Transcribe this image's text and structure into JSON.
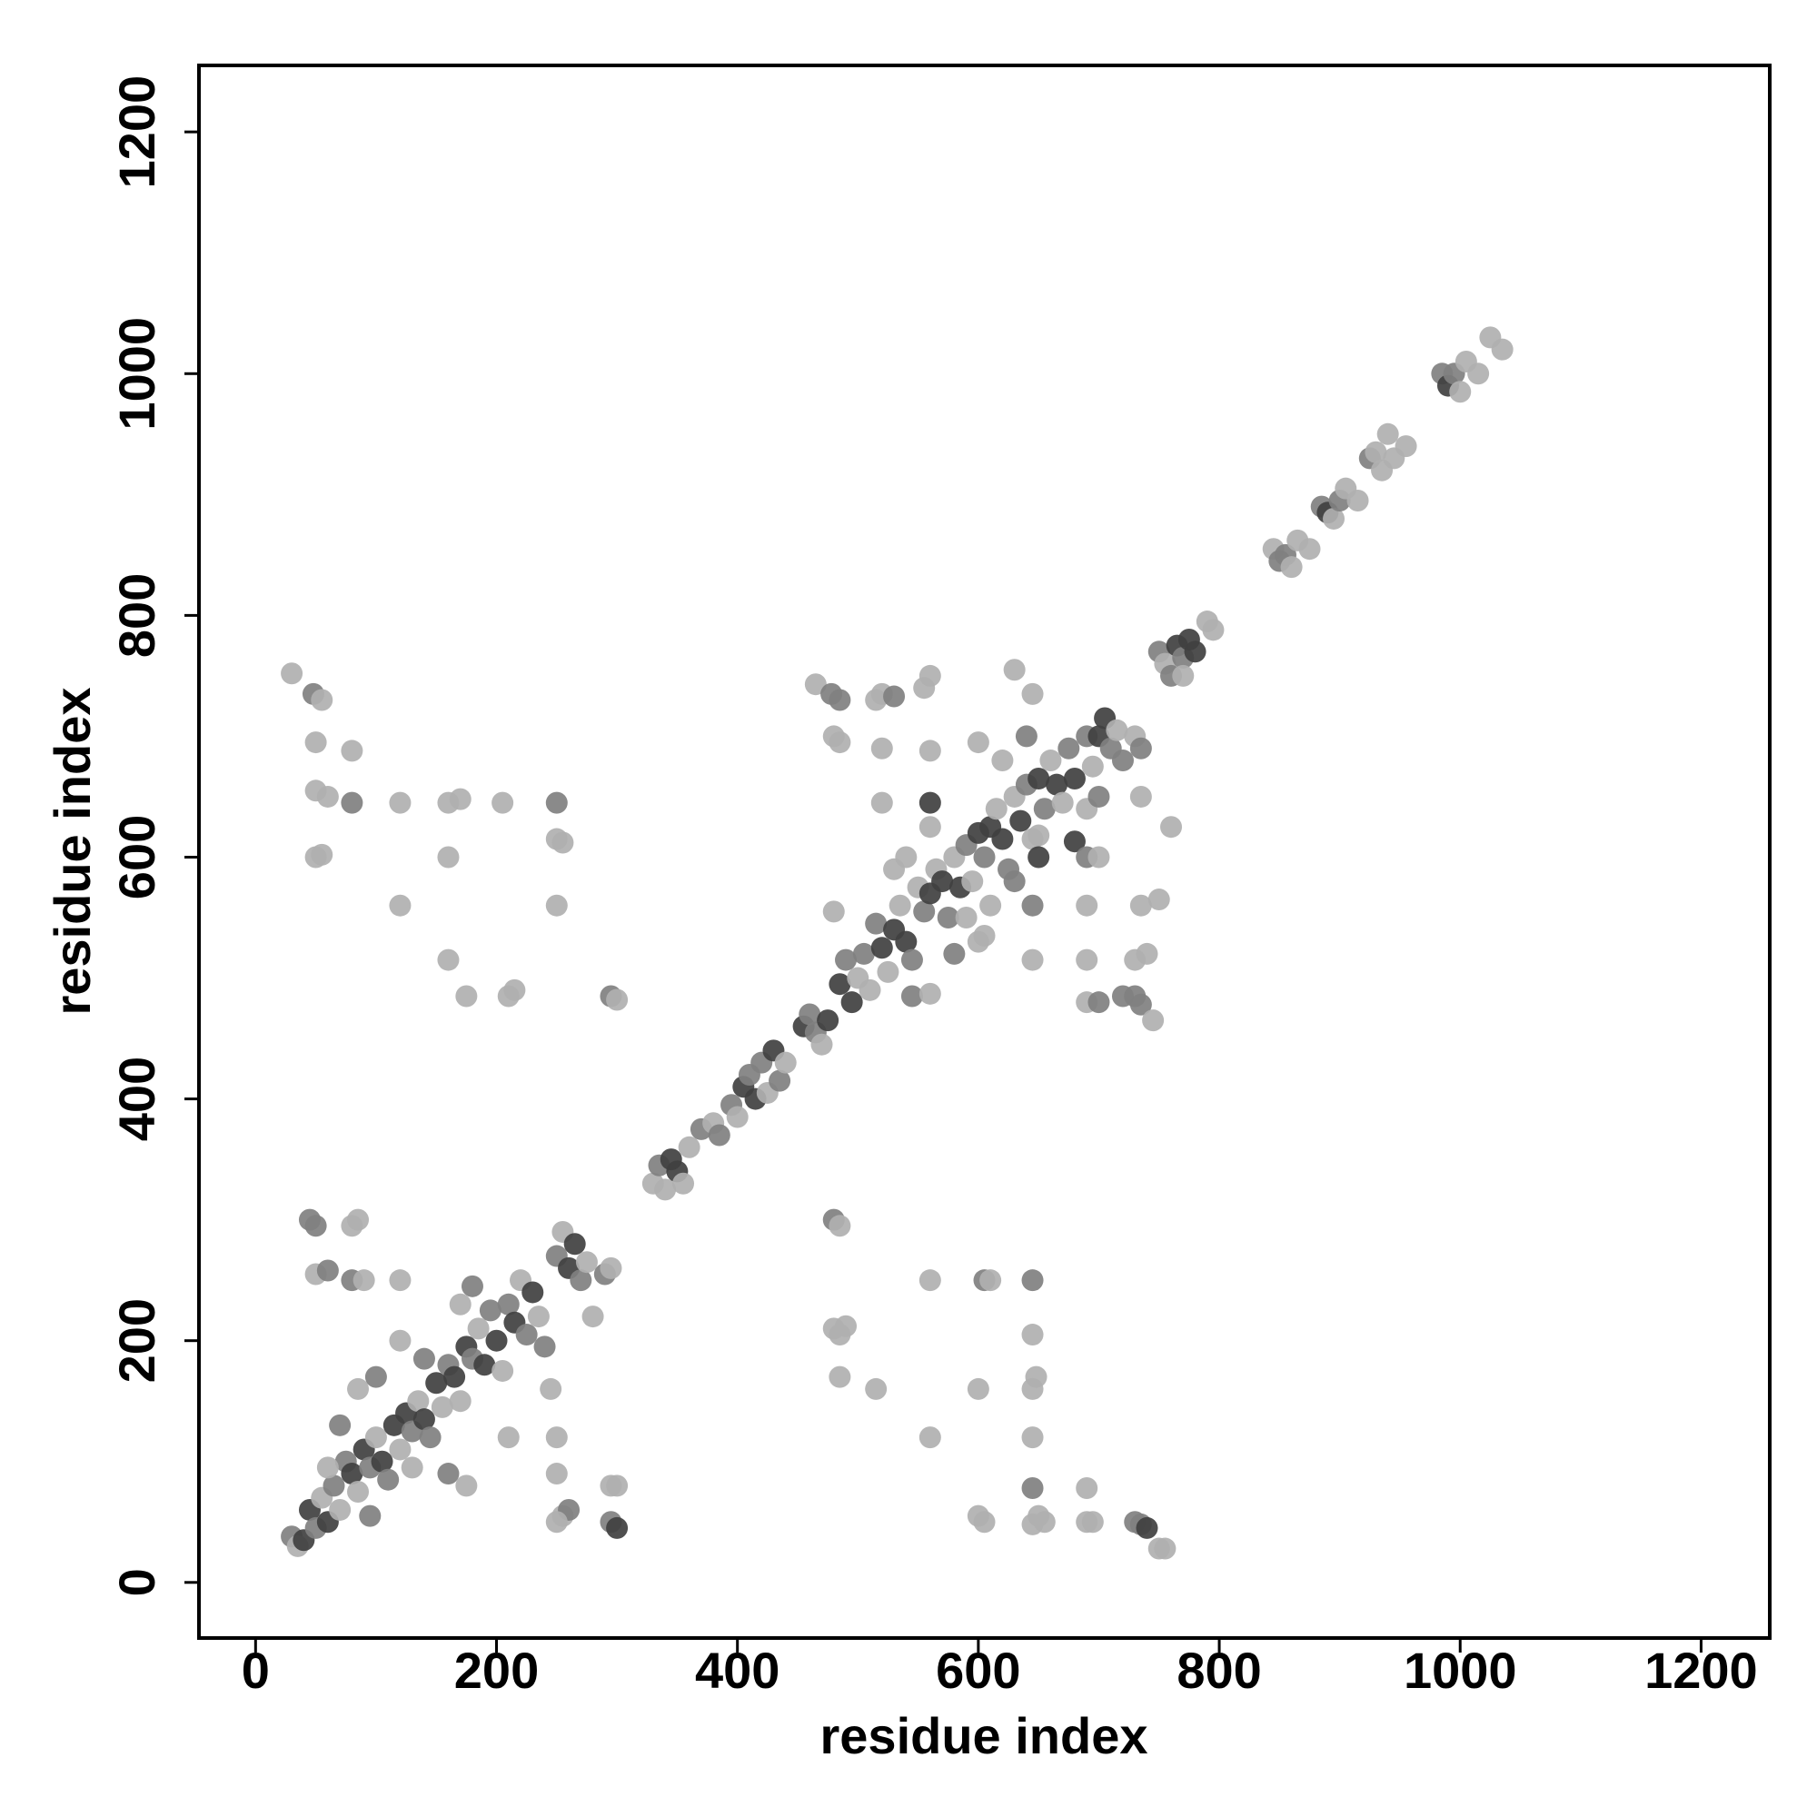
{
  "chart_data": {
    "type": "scatter",
    "xlabel": "residue index",
    "ylabel": "residue index",
    "xlim": [
      -47,
      1257
    ],
    "ylim": [
      -46,
      1255
    ],
    "xticks": [
      0,
      200,
      400,
      600,
      800,
      1000,
      1200
    ],
    "yticks": [
      0,
      200,
      400,
      600,
      800,
      1000,
      1200
    ],
    "grid": false,
    "x": [
      30,
      35,
      40,
      45,
      50,
      55,
      60,
      65,
      70,
      75,
      80,
      85,
      90,
      95,
      100,
      105,
      110,
      115,
      120,
      125,
      130,
      135,
      140,
      145,
      150,
      155,
      160,
      165,
      170,
      175,
      180,
      185,
      190,
      195,
      200,
      205,
      210,
      215,
      220,
      225,
      230,
      235,
      240,
      250,
      255,
      260,
      265,
      270,
      275,
      280,
      290,
      295,
      60,
      70,
      85,
      100,
      120,
      140,
      170,
      180,
      210,
      245,
      175,
      160,
      95,
      130,
      45,
      50,
      80,
      85,
      50,
      60,
      80,
      90,
      120,
      250,
      255,
      260,
      250,
      295,
      300,
      295,
      300,
      250,
      30,
      48,
      55,
      50,
      50,
      60,
      50,
      55,
      80,
      80,
      120,
      160,
      170,
      205,
      250,
      250,
      255,
      120,
      250,
      160,
      160,
      175,
      210,
      215,
      295,
      300,
      480,
      485,
      480,
      485,
      490,
      485,
      515,
      560,
      560,
      605,
      610,
      600,
      645,
      645,
      648,
      645,
      645,
      645,
      600,
      605,
      645,
      650,
      655,
      690,
      690,
      695,
      730,
      735,
      740,
      750,
      755,
      330,
      335,
      340,
      345,
      350,
      355,
      360,
      370,
      380,
      385,
      395,
      400,
      405,
      410,
      415,
      420,
      425,
      430,
      435,
      440,
      455,
      460,
      465,
      470,
      475,
      485,
      490,
      495,
      500,
      505,
      510,
      515,
      520,
      525,
      530,
      535,
      540,
      545,
      550,
      555,
      560,
      565,
      570,
      575,
      580,
      585,
      590,
      595,
      600,
      605,
      610,
      615,
      620,
      625,
      630,
      635,
      640,
      645,
      650,
      655,
      660,
      665,
      670,
      675,
      680,
      690,
      695,
      700,
      705,
      710,
      715,
      720,
      730,
      735,
      530,
      560,
      590,
      610,
      630,
      650,
      580,
      600,
      620,
      640,
      690,
      700,
      545,
      560,
      605,
      540,
      465,
      478,
      485,
      480,
      485,
      515,
      520,
      530,
      560,
      555,
      630,
      645,
      600,
      560,
      520,
      520,
      560,
      650,
      680,
      645,
      690,
      690,
      700,
      735,
      760,
      735,
      750,
      730,
      740,
      690,
      690,
      700,
      720,
      730,
      735,
      745,
      480,
      645,
      750,
      755,
      760,
      765,
      770,
      775,
      780,
      770,
      790,
      795,
      845,
      850,
      855,
      860,
      865,
      875,
      885,
      890,
      895,
      900,
      905,
      915,
      925,
      930,
      935,
      940,
      945,
      955,
      985,
      990,
      995,
      1000,
      1005,
      1015,
      1025,
      1035
    ],
    "y": [
      38,
      30,
      35,
      60,
      45,
      70,
      50,
      80,
      60,
      100,
      90,
      75,
      110,
      95,
      120,
      100,
      85,
      130,
      110,
      140,
      125,
      150,
      135,
      120,
      165,
      145,
      180,
      170,
      150,
      195,
      185,
      210,
      180,
      225,
      200,
      175,
      230,
      215,
      250,
      205,
      240,
      220,
      195,
      270,
      290,
      260,
      280,
      250,
      265,
      220,
      255,
      260,
      95,
      130,
      160,
      170,
      200,
      185,
      230,
      245,
      120,
      160,
      80,
      90,
      55,
      95,
      300,
      295,
      295,
      300,
      255,
      258,
      250,
      250,
      250,
      90,
      55,
      60,
      50,
      50,
      45,
      80,
      80,
      120,
      752,
      735,
      730,
      695,
      655,
      650,
      600,
      602,
      688,
      645,
      645,
      645,
      648,
      645,
      645,
      615,
      612,
      560,
      560,
      600,
      515,
      485,
      485,
      490,
      485,
      482,
      300,
      295,
      210,
      205,
      212,
      170,
      160,
      250,
      120,
      250,
      250,
      160,
      250,
      205,
      170,
      160,
      120,
      78,
      55,
      50,
      48,
      55,
      50,
      78,
      50,
      50,
      50,
      48,
      45,
      28,
      28,
      330,
      345,
      325,
      350,
      340,
      330,
      360,
      375,
      380,
      370,
      395,
      385,
      410,
      420,
      400,
      430,
      405,
      440,
      415,
      430,
      460,
      470,
      455,
      445,
      465,
      495,
      515,
      480,
      500,
      520,
      490,
      545,
      525,
      505,
      540,
      560,
      530,
      515,
      575,
      555,
      570,
      590,
      580,
      550,
      600,
      575,
      610,
      580,
      620,
      600,
      625,
      640,
      615,
      590,
      650,
      630,
      660,
      615,
      665,
      640,
      680,
      660,
      645,
      690,
      665,
      700,
      675,
      700,
      715,
      690,
      705,
      680,
      700,
      690,
      590,
      625,
      550,
      560,
      580,
      600,
      520,
      530,
      680,
      700,
      640,
      650,
      485,
      487,
      535,
      600,
      743,
      735,
      730,
      700,
      695,
      730,
      735,
      733,
      750,
      740,
      755,
      735,
      695,
      688,
      690,
      645,
      645,
      618,
      613,
      560,
      560,
      600,
      600,
      650,
      625,
      560,
      565,
      515,
      520,
      515,
      480,
      480,
      485,
      485,
      478,
      465,
      555,
      515,
      770,
      760,
      750,
      775,
      765,
      780,
      770,
      750,
      795,
      788,
      855,
      845,
      850,
      840,
      862,
      855,
      890,
      885,
      880,
      895,
      905,
      895,
      930,
      935,
      920,
      950,
      930,
      940,
      1000,
      990,
      1000,
      985,
      1010,
      1000,
      1030,
      1020
    ],
    "colors": [
      "#808080",
      "#b0b0b0",
      "#404040",
      "#404040",
      "#808080",
      "#b0b0b0",
      "#404040",
      "#808080",
      "#b0b0b0",
      "#808080",
      "#404040",
      "#b0b0b0",
      "#404040",
      "#808080",
      "#b0b0b0",
      "#404040",
      "#808080",
      "#404040",
      "#b0b0b0",
      "#404040",
      "#808080",
      "#b0b0b0",
      "#404040",
      "#808080",
      "#404040",
      "#b0b0b0",
      "#808080",
      "#404040",
      "#b0b0b0",
      "#404040",
      "#808080",
      "#b0b0b0",
      "#404040",
      "#808080",
      "#404040",
      "#b0b0b0",
      "#808080",
      "#404040",
      "#b0b0b0",
      "#808080",
      "#404040",
      "#b0b0b0",
      "#808080",
      "#808080",
      "#b0b0b0",
      "#404040",
      "#404040",
      "#808080",
      "#b0b0b0",
      "#b0b0b0",
      "#808080",
      "#b0b0b0",
      "#b0b0b0",
      "#808080",
      "#b0b0b0",
      "#808080",
      "#b0b0b0",
      "#808080",
      "#b0b0b0",
      "#808080",
      "#b0b0b0",
      "#b0b0b0",
      "#b0b0b0",
      "#808080",
      "#808080",
      "#b0b0b0",
      "#808080",
      "#808080",
      "#b0b0b0",
      "#b0b0b0",
      "#b0b0b0",
      "#808080",
      "#808080",
      "#b0b0b0",
      "#b0b0b0",
      "#b0b0b0",
      "#b0b0b0",
      "#808080",
      "#b0b0b0",
      "#808080",
      "#404040",
      "#b0b0b0",
      "#b0b0b0",
      "#b0b0b0",
      "#b0b0b0",
      "#808080",
      "#b0b0b0",
      "#b0b0b0",
      "#b0b0b0",
      "#b0b0b0",
      "#b0b0b0",
      "#b0b0b0",
      "#b0b0b0",
      "#808080",
      "#b0b0b0",
      "#b0b0b0",
      "#b0b0b0",
      "#b0b0b0",
      "#808080",
      "#b0b0b0",
      "#b0b0b0",
      "#b0b0b0",
      "#b0b0b0",
      "#b0b0b0",
      "#b0b0b0",
      "#b0b0b0",
      "#b0b0b0",
      "#b0b0b0",
      "#808080",
      "#b0b0b0",
      "#808080",
      "#b0b0b0",
      "#b0b0b0",
      "#b0b0b0",
      "#b0b0b0",
      "#b0b0b0",
      "#b0b0b0",
      "#b0b0b0",
      "#b0b0b0",
      "#808080",
      "#b0b0b0",
      "#b0b0b0",
      "#808080",
      "#b0b0b0",
      "#b0b0b0",
      "#b0b0b0",
      "#b0b0b0",
      "#808080",
      "#b0b0b0",
      "#b0b0b0",
      "#b0b0b0",
      "#b0b0b0",
      "#b0b0b0",
      "#b0b0b0",
      "#b0b0b0",
      "#b0b0b0",
      "#808080",
      "#808080",
      "#404040",
      "#b0b0b0",
      "#b0b0b0",
      "#b0b0b0",
      "#808080",
      "#b0b0b0",
      "#404040",
      "#404040",
      "#b0b0b0",
      "#b0b0b0",
      "#808080",
      "#b0b0b0",
      "#808080",
      "#808080",
      "#b0b0b0",
      "#404040",
      "#808080",
      "#404040",
      "#808080",
      "#b0b0b0",
      "#404040",
      "#808080",
      "#b0b0b0",
      "#404040",
      "#808080",
      "#808080",
      "#b0b0b0",
      "#404040",
      "#404040",
      "#808080",
      "#404040",
      "#b0b0b0",
      "#808080",
      "#b0b0b0",
      "#808080",
      "#404040",
      "#b0b0b0",
      "#404040",
      "#b0b0b0",
      "#404040",
      "#808080",
      "#b0b0b0",
      "#808080",
      "#404040",
      "#b0b0b0",
      "#404040",
      "#808080",
      "#b0b0b0",
      "#404040",
      "#808080",
      "#b0b0b0",
      "#404040",
      "#808080",
      "#404040",
      "#b0b0b0",
      "#404040",
      "#808080",
      "#b0b0b0",
      "#404040",
      "#808080",
      "#b0b0b0",
      "#404040",
      "#808080",
      "#b0b0b0",
      "#404040",
      "#b0b0b0",
      "#808080",
      "#404040",
      "#808080",
      "#b0b0b0",
      "#404040",
      "#404040",
      "#808080",
      "#b0b0b0",
      "#808080",
      "#b0b0b0",
      "#808080",
      "#b0b0b0",
      "#b0b0b0",
      "#b0b0b0",
      "#b0b0b0",
      "#808080",
      "#404040",
      "#808080",
      "#b0b0b0",
      "#b0b0b0",
      "#808080",
      "#b0b0b0",
      "#808080",
      "#808080",
      "#b0b0b0",
      "#b0b0b0",
      "#b0b0b0",
      "#b0b0b0",
      "#808080",
      "#808080",
      "#b0b0b0",
      "#b0b0b0",
      "#b0b0b0",
      "#b0b0b0",
      "#808080",
      "#b0b0b0",
      "#b0b0b0",
      "#b0b0b0",
      "#b0b0b0",
      "#b0b0b0",
      "#b0b0b0",
      "#b0b0b0",
      "#b0b0b0",
      "#404040",
      "#b0b0b0",
      "#404040",
      "#808080",
      "#b0b0b0",
      "#808080",
      "#b0b0b0",
      "#b0b0b0",
      "#b0b0b0",
      "#b0b0b0",
      "#b0b0b0",
      "#b0b0b0",
      "#b0b0b0",
      "#b0b0b0",
      "#b0b0b0",
      "#808080",
      "#808080",
      "#808080",
      "#808080",
      "#b0b0b0",
      "#b0b0b0",
      "#b0b0b0",
      "#808080",
      "#b0b0b0",
      "#808080",
      "#404040",
      "#808080",
      "#404040",
      "#404040",
      "#b0b0b0",
      "#b0b0b0",
      "#b0b0b0",
      "#b0b0b0",
      "#808080",
      "#808080",
      "#b0b0b0",
      "#b0b0b0",
      "#b0b0b0",
      "#808080",
      "#404040",
      "#b0b0b0",
      "#808080",
      "#b0b0b0",
      "#b0b0b0",
      "#808080",
      "#b0b0b0",
      "#b0b0b0",
      "#b0b0b0",
      "#b0b0b0",
      "#b0b0b0",
      "#808080",
      "#404040",
      "#808080",
      "#b0b0b0",
      "#b0b0b0",
      "#b0b0b0",
      "#b0b0b0",
      "#b0b0b0"
    ]
  }
}
